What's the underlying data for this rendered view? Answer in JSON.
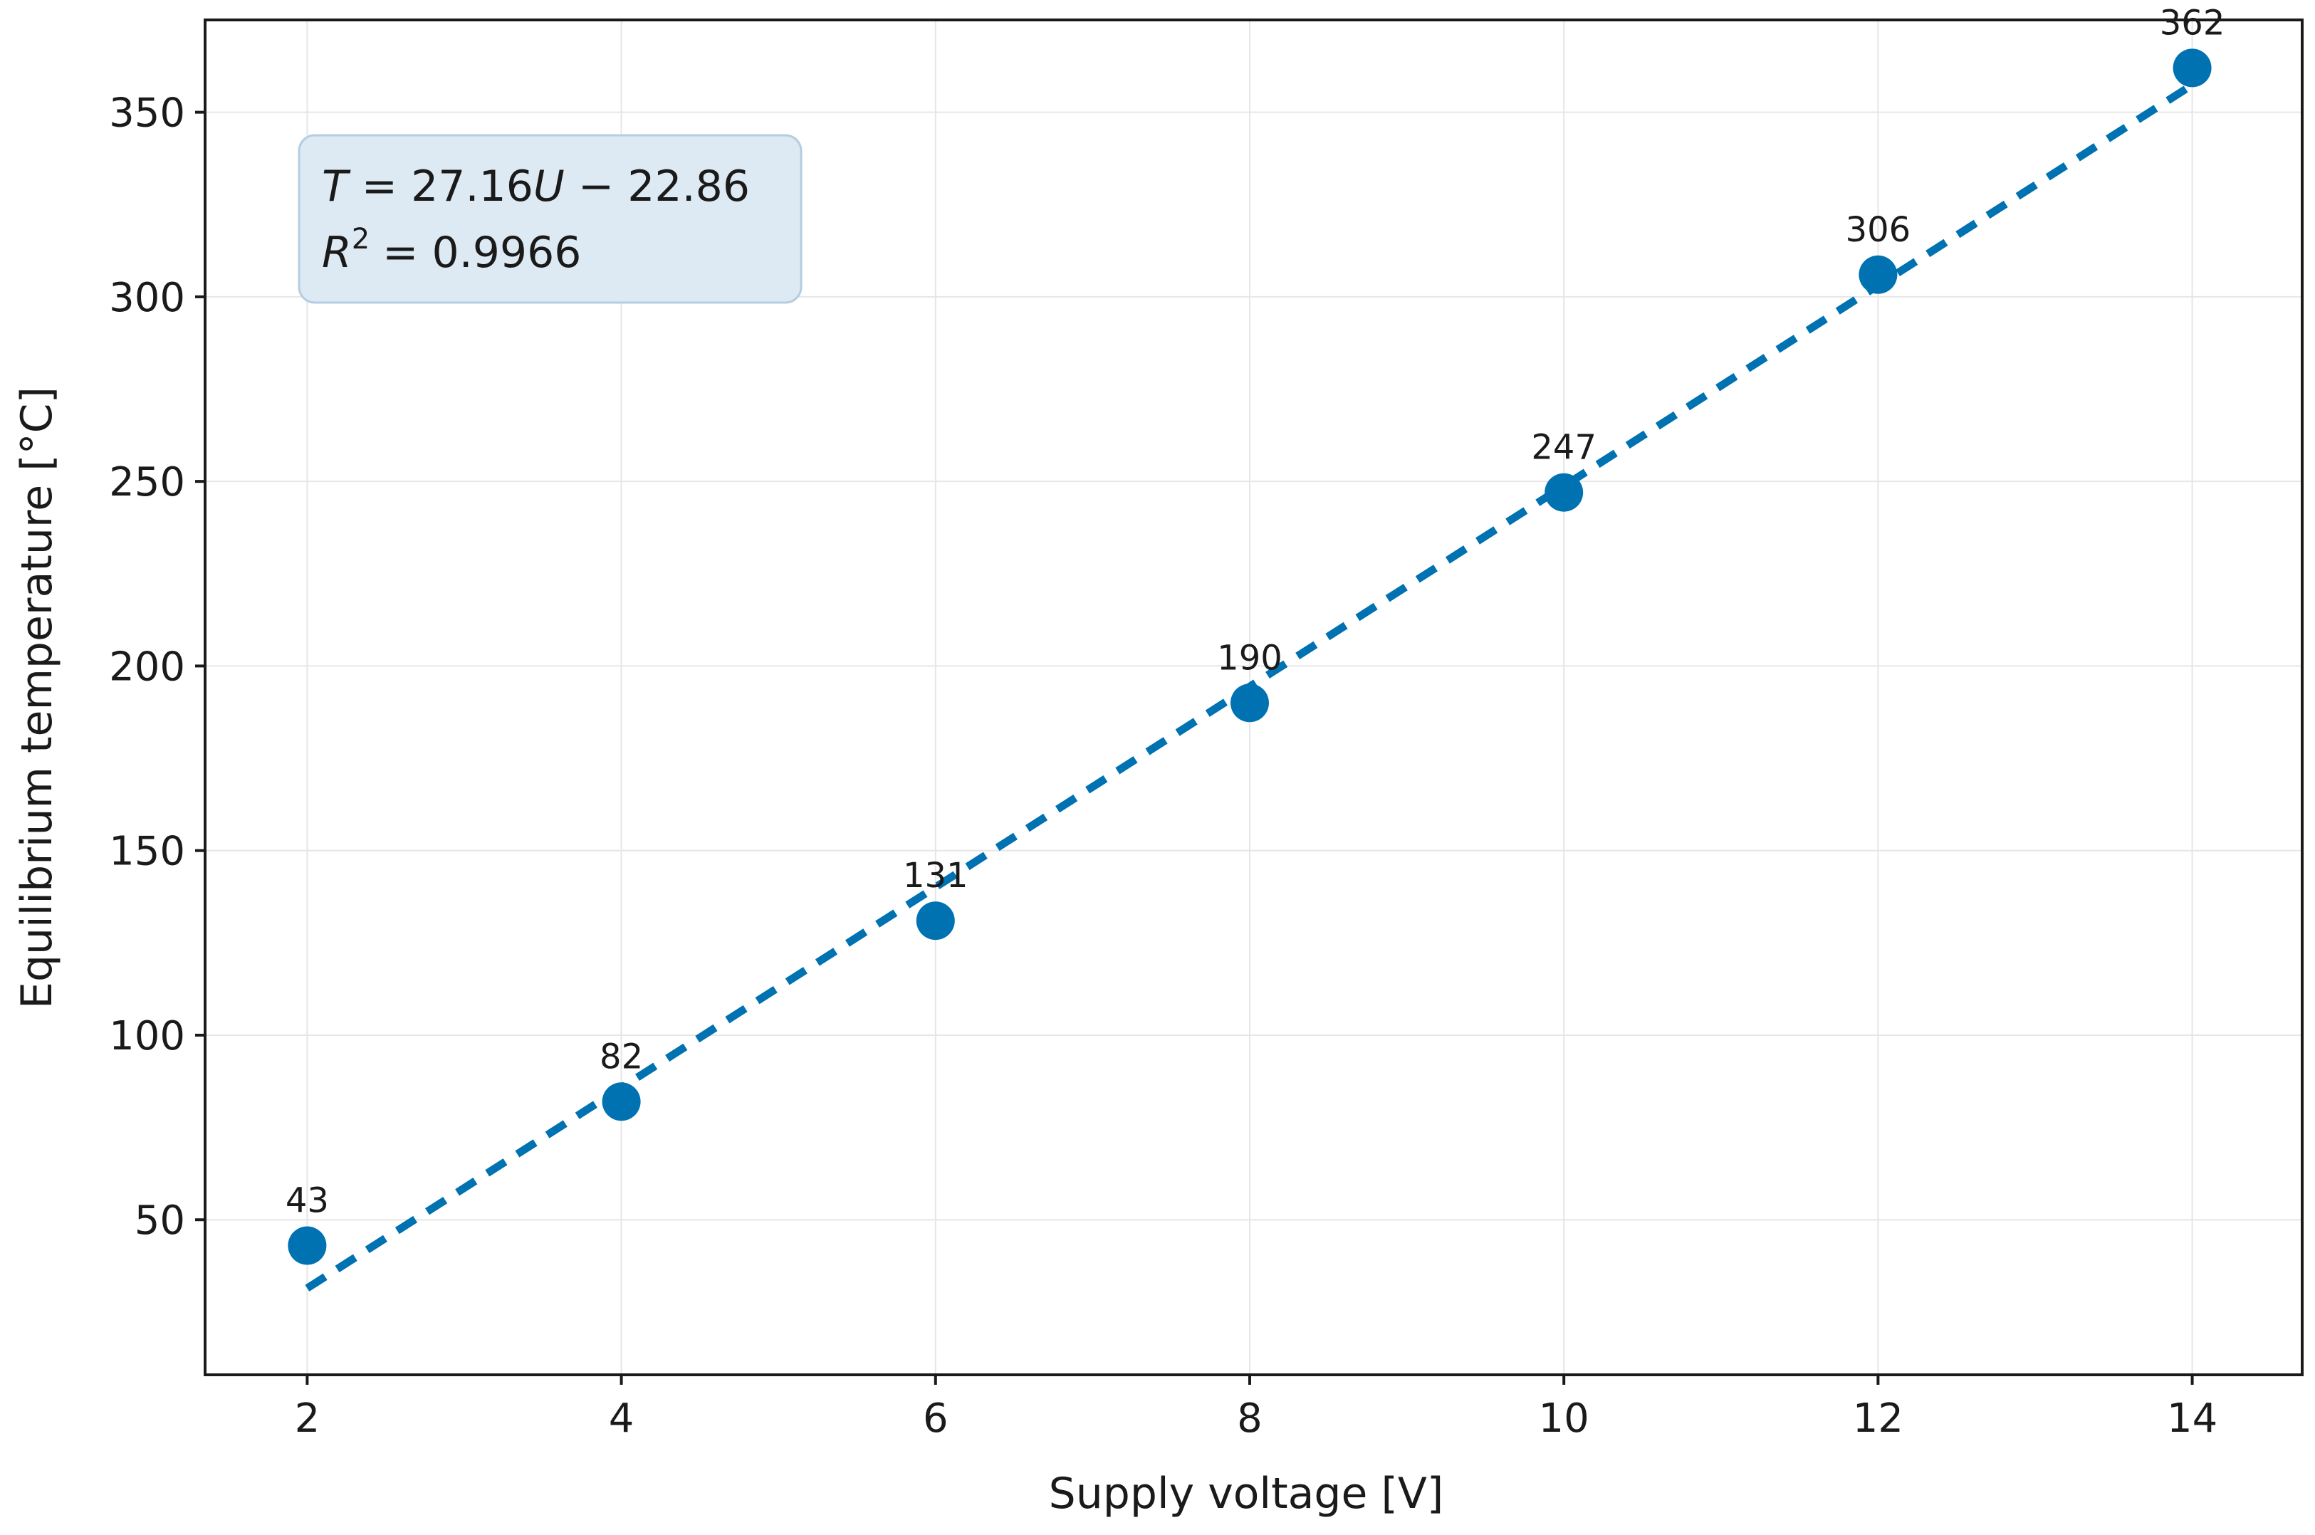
{
  "chart_data": {
    "type": "scatter",
    "xlabel": "Supply voltage [V]",
    "ylabel": "Equilibrium temperature [°C]",
    "xlim": [
      1.35,
      14.7
    ],
    "ylim": [
      8,
      375
    ],
    "xticks": [
      2,
      4,
      6,
      8,
      10,
      12,
      14
    ],
    "yticks": [
      50,
      100,
      150,
      200,
      250,
      300,
      350
    ],
    "grid": true,
    "series": [
      {
        "x": [
          2,
          4,
          6,
          8,
          10,
          12,
          14
        ],
        "values": [
          43,
          82,
          131,
          190,
          247,
          306,
          362
        ],
        "labels": [
          "43",
          "82",
          "131",
          "190",
          "247",
          "306",
          "362"
        ],
        "color": "#0072b2"
      }
    ],
    "fit_line": {
      "slope": 27.16,
      "intercept": -22.86,
      "x_range": [
        2,
        14
      ],
      "style": "dashed",
      "color": "#0072b2"
    },
    "annotation": {
      "equation": {
        "v1": "T",
        "op1": "=",
        "coef": "27.16",
        "v2": "U",
        "rest": "− 22.86"
      },
      "r_squared": {
        "v": "R",
        "sup": "2",
        "rest": "= 0.9966"
      },
      "position": "top-left"
    }
  }
}
